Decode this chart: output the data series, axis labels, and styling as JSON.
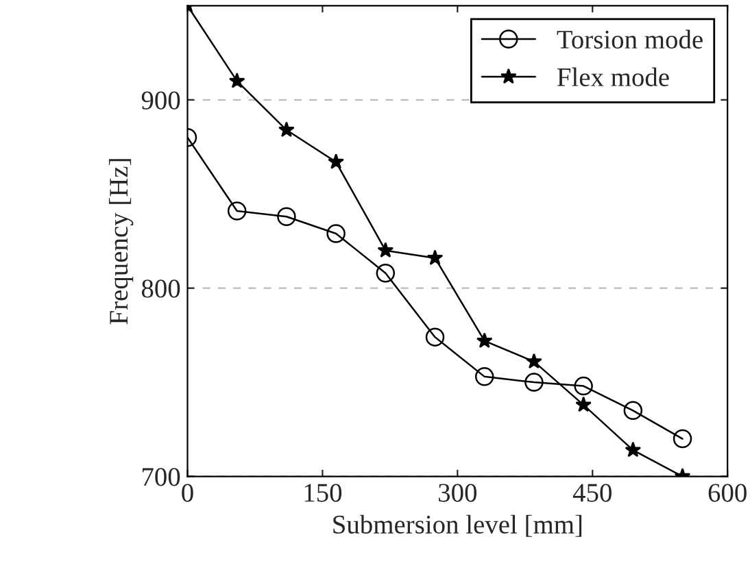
{
  "chart_data": {
    "type": "line",
    "xlabel": "Submersion level [mm]",
    "ylabel": "Frequency [Hz]",
    "x": [
      0,
      55,
      110,
      165,
      220,
      275,
      330,
      385,
      440,
      495,
      550
    ],
    "series": [
      {
        "name": "Torsion mode",
        "color": "#000000",
        "marker": "circle",
        "values": [
          880,
          841,
          838,
          829,
          808,
          774,
          753,
          750,
          748,
          735,
          720
        ]
      },
      {
        "name": "Flex mode",
        "color": "#000000",
        "marker": "star",
        "values": [
          950,
          910,
          884,
          867,
          820,
          816,
          772,
          761,
          738,
          714,
          700
        ]
      }
    ],
    "xlim": [
      0,
      600
    ],
    "xticks": [
      0,
      150,
      300,
      450,
      600
    ],
    "ylim": [
      700,
      950
    ],
    "yticks": [
      700,
      800,
      900
    ],
    "grid": "y",
    "legend": "top right"
  }
}
